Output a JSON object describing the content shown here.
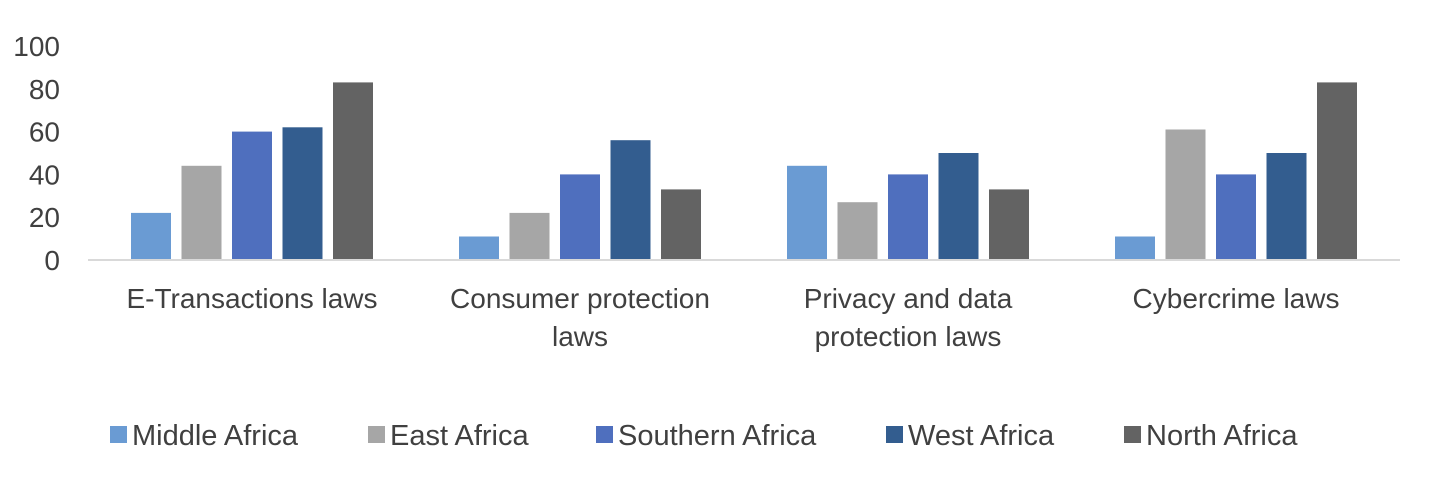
{
  "chart_data": {
    "type": "bar",
    "categories": [
      [
        "E-Transactions laws"
      ],
      [
        "Consumer protection",
        "laws"
      ],
      [
        "Privacy and data",
        "protection laws"
      ],
      [
        "Cybercrime laws"
      ]
    ],
    "series": [
      {
        "name": "Middle Africa",
        "color": "#6a9bd3",
        "values": [
          22,
          11,
          44,
          11
        ]
      },
      {
        "name": "East Africa",
        "color": "#a6a6a6",
        "values": [
          44,
          22,
          27,
          61
        ]
      },
      {
        "name": "Southern Africa",
        "color": "#4f6fbe",
        "values": [
          60,
          40,
          40,
          40
        ]
      },
      {
        "name": "West Africa",
        "color": "#335d8f",
        "values": [
          62,
          56,
          50,
          50
        ]
      },
      {
        "name": "North Africa",
        "color": "#636363",
        "values": [
          83,
          33,
          33,
          83
        ]
      }
    ],
    "yticks": [
      "0",
      "20",
      "40",
      "60",
      "80",
      "100"
    ],
    "ylim": [
      0,
      100
    ],
    "grid": false,
    "legend": "bottom",
    "title": "",
    "xlabel": "",
    "ylabel": ""
  }
}
